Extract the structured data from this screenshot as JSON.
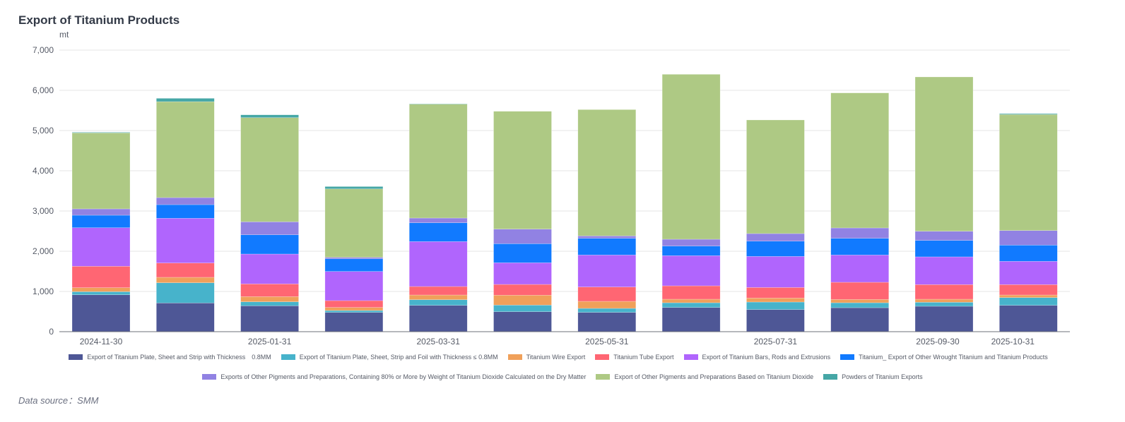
{
  "title": "Export of Titanium Products",
  "source": "Data source：SMM",
  "chart_data": {
    "type": "bar",
    "stacked": true,
    "title": "Export of Titanium Products",
    "ylabel": "mt",
    "xlabel": "",
    "ylim": [
      0,
      7000
    ],
    "yticks": [
      0,
      1000,
      2000,
      3000,
      4000,
      5000,
      6000,
      7000
    ],
    "ytick_labels": [
      "0",
      "1,000",
      "2,000",
      "3,000",
      "4,000",
      "5,000",
      "6,000",
      "7,000"
    ],
    "grid": true,
    "legend_position": "bottom",
    "categories": [
      "2024-11-30",
      "2024-12-31",
      "2025-01-31",
      "2025-02-28",
      "2025-03-31",
      "2025-04-30",
      "2025-05-31",
      "2025-06-30",
      "2025-07-31",
      "2025-08-31",
      "2025-09-30",
      "2025-10-31"
    ],
    "visible_xtick_labels": [
      "2024-11-30",
      "2025-01-31",
      "2025-03-31",
      "2025-05-31",
      "2025-07-31",
      "2025-09-30",
      "2025-10-31"
    ],
    "series": [
      {
        "name": "Export of Titanium Plate, Sheet and Strip with Thickness　0.8MM",
        "color": "#4e5796",
        "values": [
          917,
          714,
          643,
          480,
          655,
          497,
          480,
          602,
          550,
          596,
          632,
          655
        ]
      },
      {
        "name": "Export of Titanium Plate, Sheet, Strip and Foil with Thickness ≤ 0.8MM",
        "color": "#47b3cb",
        "values": [
          77,
          502,
          100,
          46,
          140,
          164,
          99,
          117,
          187,
          123,
          99,
          193
        ]
      },
      {
        "name": "Titanium Wire Export",
        "color": "#f0a05a",
        "values": [
          99,
          135,
          128,
          76,
          117,
          246,
          175,
          88,
          99,
          82,
          76,
          64
        ]
      },
      {
        "name": "Titanium Tube Export",
        "color": "#ff6673",
        "values": [
          533,
          356,
          316,
          170,
          211,
          268,
          357,
          333,
          263,
          427,
          363,
          258
        ]
      },
      {
        "name": "Export of Titanium Bars, Rods and Extrusions",
        "color": "#b065fd",
        "values": [
          958,
          1112,
          743,
          725,
          1117,
          538,
          795,
          749,
          772,
          678,
          690,
          579
        ]
      },
      {
        "name": "Titanium_ Export of Other Wrought Titanium and Titanium Products",
        "color": "#117aff",
        "values": [
          311,
          339,
          479,
          316,
          468,
          474,
          416,
          240,
          380,
          416,
          409,
          403
        ]
      },
      {
        "name": "Exports of Other Pigments and Preparations, Containing 80% or More by Weight of Titanium Dioxide Calculated on the Dry Matter",
        "color": "#9182e3",
        "values": [
          158,
          175,
          322,
          35,
          117,
          363,
          58,
          169,
          188,
          257,
          228,
          363
        ]
      },
      {
        "name": "Export of Other Pigments and Preparations Based on Titanium Dioxide",
        "color": "#aec984",
        "values": [
          1889,
          2386,
          2590,
          1702,
          2832,
          2929,
          3141,
          4100,
          2824,
          3357,
          3836,
          2886
        ]
      },
      {
        "name": "Powders of Titanium Exports",
        "color": "#45a7a6",
        "values": [
          15,
          82,
          70,
          58,
          10,
          0,
          0,
          0,
          0,
          0,
          0,
          20
        ]
      }
    ]
  }
}
